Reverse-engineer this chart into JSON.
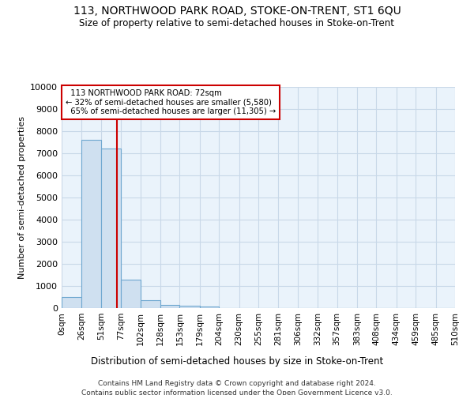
{
  "title_line1": "113, NORTHWOOD PARK ROAD, STOKE-ON-TRENT, ST1 6QU",
  "title_line2": "Size of property relative to semi-detached houses in Stoke-on-Trent",
  "xlabel": "Distribution of semi-detached houses by size in Stoke-on-Trent",
  "ylabel": "Number of semi-detached properties",
  "footnote1": "Contains HM Land Registry data © Crown copyright and database right 2024.",
  "footnote2": "Contains public sector information licensed under the Open Government Licence v3.0.",
  "property_size": 72,
  "property_label": "113 NORTHWOOD PARK ROAD: 72sqm",
  "pct_smaller": 32,
  "count_smaller": 5580,
  "pct_larger": 65,
  "count_larger": 11305,
  "bin_edges": [
    0,
    26,
    51,
    77,
    102,
    128,
    153,
    179,
    204,
    230,
    255,
    281,
    306,
    332,
    357,
    383,
    408,
    434,
    459,
    485,
    510
  ],
  "bin_counts": [
    500,
    7600,
    7200,
    1300,
    350,
    150,
    100,
    70,
    0,
    0,
    0,
    0,
    0,
    0,
    0,
    0,
    0,
    0,
    0,
    0
  ],
  "bar_color": "#cfe0f0",
  "bar_edge_color": "#6fa8d0",
  "redline_color": "#cc0000",
  "box_color": "#cc0000",
  "grid_color": "#c8d8e8",
  "bg_color": "#eaf3fb",
  "tick_labels": [
    "0sqm",
    "26sqm",
    "51sqm",
    "77sqm",
    "102sqm",
    "128sqm",
    "153sqm",
    "179sqm",
    "204sqm",
    "230sqm",
    "255sqm",
    "281sqm",
    "306sqm",
    "332sqm",
    "357sqm",
    "383sqm",
    "408sqm",
    "434sqm",
    "459sqm",
    "485sqm",
    "510sqm"
  ],
  "ylim": [
    0,
    10000
  ],
  "yticks": [
    0,
    1000,
    2000,
    3000,
    4000,
    5000,
    6000,
    7000,
    8000,
    9000,
    10000
  ]
}
